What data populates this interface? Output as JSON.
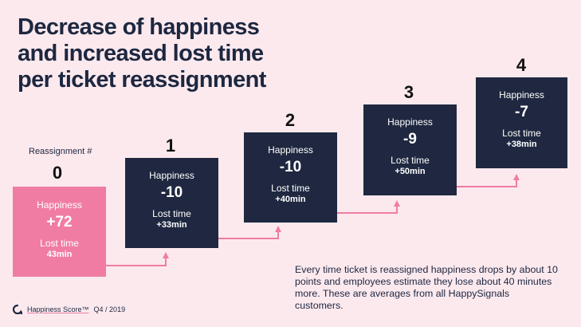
{
  "title": {
    "line1": "Decrease of happiness",
    "line2": "and increased lost time",
    "line3": "per ticket reassignment"
  },
  "reassignment_label": "Reassignment #",
  "steps": [
    {
      "number": "0",
      "happiness_label": "Happiness",
      "happiness": "+72",
      "lost_time_label": "Lost time",
      "lost_time": "43min"
    },
    {
      "number": "1",
      "happiness_label": "Happiness",
      "happiness": "-10",
      "lost_time_label": "Lost time",
      "lost_time": "+33min"
    },
    {
      "number": "2",
      "happiness_label": "Happiness",
      "happiness": "-10",
      "lost_time_label": "Lost time",
      "lost_time": "+40min"
    },
    {
      "number": "3",
      "happiness_label": "Happiness",
      "happiness": "-9",
      "lost_time_label": "Lost time",
      "lost_time": "+50min"
    },
    {
      "number": "4",
      "happiness_label": "Happiness",
      "happiness": "-7",
      "lost_time_label": "Lost time",
      "lost_time": "+38min"
    }
  ],
  "note": "Every time ticket is reassigned happiness drops by about 10 points and employees estimate they lose about 40 minutes more. These are averages from all HappySignals customers.",
  "footer": {
    "brand": "Happiness Score™",
    "period": "Q4 / 2019"
  },
  "colors": {
    "background": "#fce9ee",
    "card_dark": "#1f2840",
    "card_first": "#f07ca4",
    "connector": "#f07ca4"
  },
  "icons": [
    "happysignals-logo-icon"
  ]
}
